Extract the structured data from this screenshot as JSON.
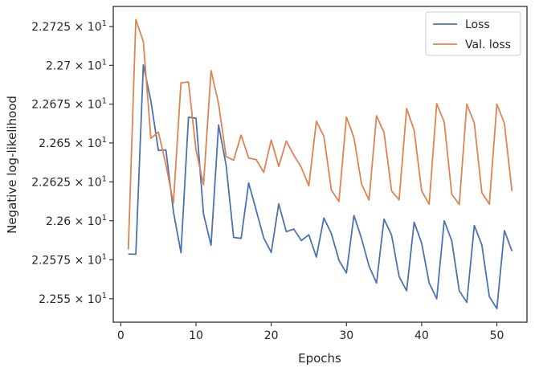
{
  "chart_data": {
    "type": "line",
    "xlabel": "Epochs",
    "ylabel": "Negative log-likelihood",
    "xlim": [
      -1,
      54
    ],
    "ylim": [
      22.535,
      22.738
    ],
    "y_scale": "log",
    "grid": false,
    "legend_position": "top-right",
    "x_ticks": [
      0,
      10,
      20,
      30,
      40,
      50
    ],
    "x_tick_labels": [
      "0",
      "10",
      "20",
      "30",
      "40",
      "50"
    ],
    "y_ticks": [
      22.55,
      22.575,
      22.6,
      22.625,
      22.65,
      22.675,
      22.7,
      22.725
    ],
    "y_tick_labels": [
      {
        "mantissa": "2.255",
        "base": "10",
        "exponent": "1"
      },
      {
        "mantissa": "2.2575",
        "base": "10",
        "exponent": "1"
      },
      {
        "mantissa": "2.26",
        "base": "10",
        "exponent": "1"
      },
      {
        "mantissa": "2.2625",
        "base": "10",
        "exponent": "1"
      },
      {
        "mantissa": "2.265",
        "base": "10",
        "exponent": "1"
      },
      {
        "mantissa": "2.2675",
        "base": "10",
        "exponent": "1"
      },
      {
        "mantissa": "2.27",
        "base": "10",
        "exponent": "1"
      },
      {
        "mantissa": "2.2725",
        "base": "10",
        "exponent": "1"
      }
    ],
    "x": [
      1,
      2,
      3,
      4,
      5,
      6,
      7,
      8,
      9,
      10,
      11,
      12,
      13,
      14,
      15,
      16,
      17,
      18,
      19,
      20,
      21,
      22,
      23,
      24,
      25,
      26,
      27,
      28,
      29,
      30,
      31,
      32,
      33,
      34,
      35,
      36,
      37,
      38,
      39,
      40,
      41,
      42,
      43,
      44,
      45,
      46,
      47,
      48,
      49,
      50,
      51,
      52
    ],
    "series": [
      {
        "name": "Loss",
        "color": "#4c72b0",
        "values": [
          22.5787,
          22.5785,
          22.7003,
          22.6771,
          22.6452,
          22.6455,
          22.6058,
          22.5795,
          22.6665,
          22.6659,
          22.6043,
          22.5843,
          22.6615,
          22.6358,
          22.5893,
          22.5887,
          22.6243,
          22.6068,
          22.589,
          22.5797,
          22.6109,
          22.593,
          22.5947,
          22.5873,
          22.591,
          22.5767,
          22.6018,
          22.5917,
          22.5747,
          22.5665,
          22.6034,
          22.5887,
          22.571,
          22.5601,
          22.6011,
          22.5908,
          22.5643,
          22.5551,
          22.5991,
          22.5856,
          22.5601,
          22.55,
          22.6,
          22.5872,
          22.5551,
          22.5477,
          22.597,
          22.5845,
          22.5513,
          22.5437,
          22.5937,
          22.5806
        ]
      },
      {
        "name": "Val. loss",
        "color": "#dd8452",
        "values": [
          22.5816,
          22.7295,
          22.7152,
          22.653,
          22.657,
          22.636,
          22.6115,
          22.6887,
          22.6893,
          22.6455,
          22.6231,
          22.6966,
          22.6753,
          22.6413,
          22.6389,
          22.6551,
          22.6403,
          22.6393,
          22.6311,
          22.6519,
          22.635,
          22.6512,
          22.6422,
          22.6343,
          22.6224,
          22.664,
          22.6543,
          22.6197,
          22.6124,
          22.6667,
          22.6534,
          22.6237,
          22.6133,
          22.6675,
          22.6567,
          22.6192,
          22.6134,
          22.6721,
          22.6582,
          22.6192,
          22.6107,
          22.6753,
          22.6635,
          22.6171,
          22.6104,
          22.675,
          22.6628,
          22.6181,
          22.6107,
          22.675,
          22.6626,
          22.6191
        ]
      }
    ]
  }
}
